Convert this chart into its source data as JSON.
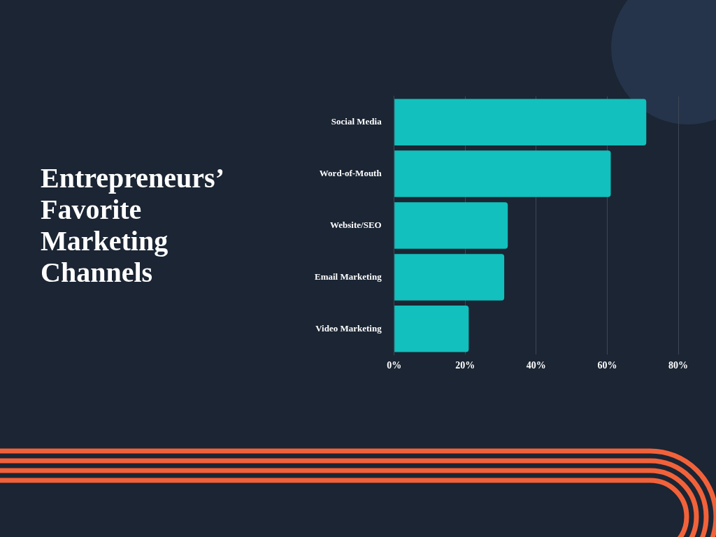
{
  "chart_data": {
    "type": "bar",
    "title": "Entrepreneurs’ Favorite Marketing Channels",
    "orientation": "horizontal",
    "categories": [
      "Social Media",
      "Word-of-Mouth",
      "Website/SEO",
      "Email Marketing",
      "Video Marketing"
    ],
    "values": [
      71,
      61,
      32,
      31,
      21
    ],
    "color": "#12c0bd",
    "xlim": [
      0,
      80
    ],
    "xticks": [
      {
        "value": 0,
        "label": "0%"
      },
      {
        "value": 20,
        "label": "20%"
      },
      {
        "value": 40,
        "label": "40%"
      },
      {
        "value": 60,
        "label": "60%"
      },
      {
        "value": 80,
        "label": "80%"
      }
    ],
    "grid": "x",
    "legend": false
  }
}
